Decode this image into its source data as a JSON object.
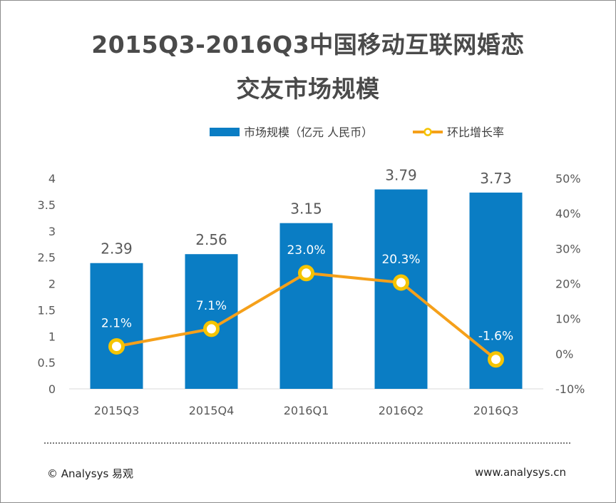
{
  "title_line1": "2015Q3-2016Q3中国移动互联网婚恋",
  "title_line2": "交友市场规模",
  "footer": {
    "copyright": "© Analysys 易观",
    "website": "www.analysys.cn"
  },
  "colors": {
    "bar": "#0a7dc4",
    "line": "#f5a01a",
    "marker_fill": "#ffffff",
    "marker_stroke": "#f5c400",
    "grid": "#d9d9d9",
    "axis_text": "#595959",
    "value_text": "#595959",
    "inner_label_text": "#ffffff"
  },
  "chart_data": {
    "type": "bar",
    "categories": [
      "2015Q3",
      "2015Q4",
      "2016Q1",
      "2016Q2",
      "2016Q3"
    ],
    "series": [
      {
        "name": "市场规模（亿元 人民币）",
        "type": "bar",
        "axis": "left",
        "values": [
          2.39,
          2.56,
          3.15,
          3.79,
          3.73
        ],
        "labels": [
          "2.39",
          "2.56",
          "3.15",
          "3.79",
          "3.73"
        ]
      },
      {
        "name": "环比增长率",
        "type": "line",
        "axis": "right",
        "values": [
          2.1,
          7.1,
          23.0,
          20.3,
          -1.6
        ],
        "labels": [
          "2.1%",
          "7.1%",
          "23.0%",
          "20.3%",
          "-1.6%"
        ]
      }
    ],
    "left_axis": {
      "range": [
        0,
        4
      ],
      "ticks": [
        "0",
        "0.5",
        "1",
        "1.5",
        "2",
        "2.5",
        "3",
        "3.5",
        "4"
      ],
      "tick_values": [
        0,
        0.5,
        1,
        1.5,
        2,
        2.5,
        3,
        3.5,
        4
      ]
    },
    "right_axis": {
      "range": [
        -10,
        50
      ],
      "ticks": [
        "-10%",
        "0%",
        "10%",
        "20%",
        "30%",
        "40%",
        "50%"
      ],
      "tick_values": [
        -10,
        0,
        10,
        20,
        30,
        40,
        50
      ]
    },
    "legend_position": "top-center",
    "grid": false
  }
}
